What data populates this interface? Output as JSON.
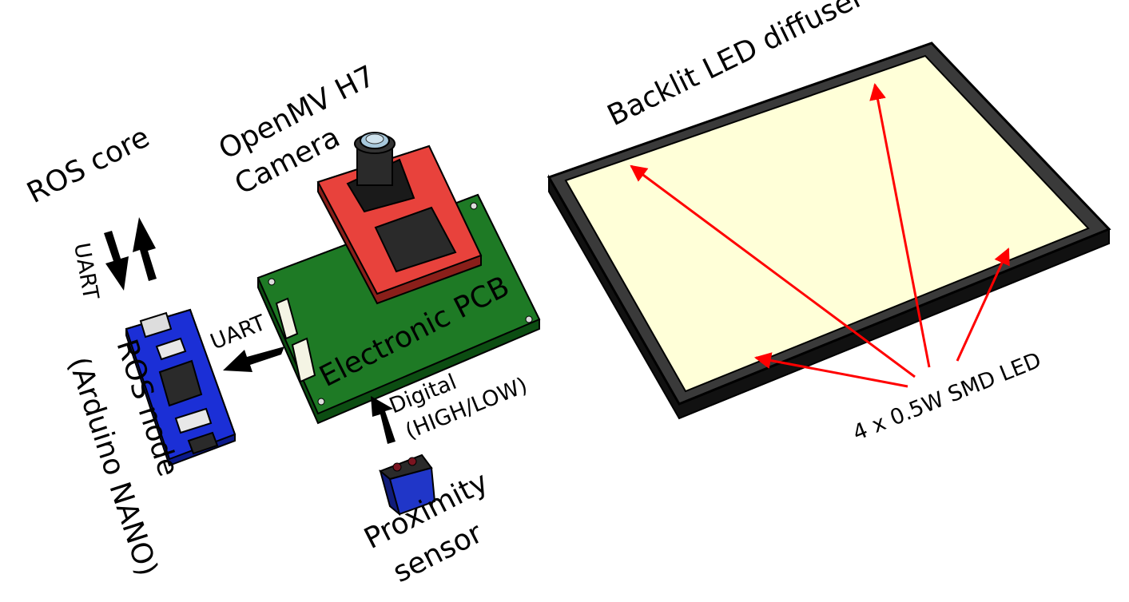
{
  "labels": {
    "ros_core": "ROS core",
    "uart_left": "UART",
    "uart_mid": "UART",
    "camera_line1": "OpenMV H7",
    "camera_line2": "Camera",
    "pcb": "Electronic PCB",
    "ros_node_line1": "ROS node",
    "ros_node_line2": "(Arduino NANO)",
    "digital_line1": "Digital",
    "digital_line2": "(HIGH/LOW)",
    "proximity_line1": "Proximity",
    "proximity_line2": "sensor",
    "diffuser": "Backlit LED diffuser",
    "led": "4 x 0.5W SMD LED"
  },
  "colors": {
    "pcb": "#1e7a25",
    "camera_board": "#e8423c",
    "arduino": "#1b2fd6",
    "sensor": "#2036c8",
    "diffuser": "#ffffd8",
    "frame": "#222222",
    "annotation_arrow": "#ff0000"
  }
}
